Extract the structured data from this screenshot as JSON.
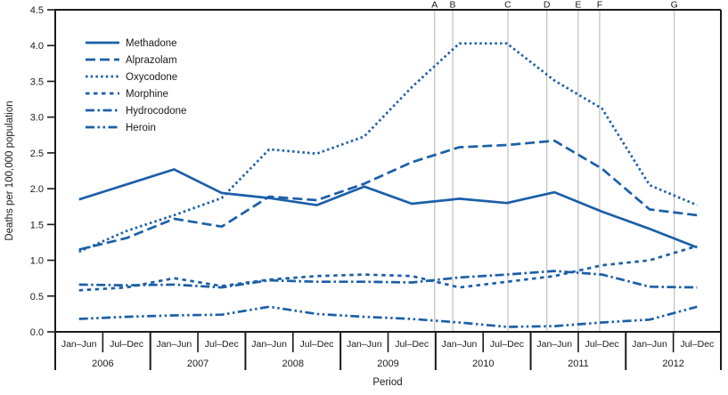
{
  "chart_data": {
    "type": "line",
    "title": "",
    "xlabel": "Period",
    "ylabel": "Deaths per 100,000 population",
    "ylim": [
      0,
      4.5
    ],
    "ytick_step": 0.5,
    "ytick_labels": [
      "0.0",
      "0.5",
      "1.0",
      "1.5",
      "2.0",
      "2.5",
      "3.0",
      "3.5",
      "4.0",
      "4.5"
    ],
    "grid": "off",
    "legend_position": "upper-left",
    "period_half_labels": [
      "Jan–Jun",
      "Jul–Dec"
    ],
    "year_labels": [
      "2006",
      "2007",
      "2008",
      "2009",
      "2010",
      "2011",
      "2012"
    ],
    "x_tick_labels": [
      "Jan–Jun",
      "Jul–Dec",
      "Jan–Jun",
      "Jul–Dec",
      "Jan–Jun",
      "Jul–Dec",
      "Jan–Jun",
      "Jul–Dec",
      "Jan–Jun",
      "Jul–Dec",
      "Jan–Jun",
      "Jul–Dec",
      "Jan–Jun",
      "Jul–Dec"
    ],
    "series": [
      {
        "name": "Methadone",
        "line_style": "solid",
        "values": [
          1.85,
          2.06,
          2.27,
          1.94,
          1.87,
          1.77,
          2.03,
          1.79,
          1.86,
          1.8,
          1.95,
          1.68,
          1.44,
          1.18
        ]
      },
      {
        "name": "Alprazolam",
        "line_style": "long-dash",
        "values": [
          1.15,
          1.31,
          1.58,
          1.47,
          1.89,
          1.84,
          2.07,
          2.37,
          2.58,
          2.61,
          2.67,
          2.28,
          1.71,
          1.63
        ]
      },
      {
        "name": "Oxycodone",
        "line_style": "dotted",
        "values": [
          1.12,
          1.41,
          1.63,
          1.87,
          2.55,
          2.49,
          2.73,
          3.42,
          4.03,
          4.03,
          3.51,
          3.12,
          2.05,
          1.77
        ]
      },
      {
        "name": "Morphine",
        "line_style": "short-dash",
        "values": [
          0.58,
          0.62,
          0.75,
          0.64,
          0.73,
          0.78,
          0.8,
          0.78,
          0.62,
          0.7,
          0.78,
          0.93,
          1.0,
          1.2
        ]
      },
      {
        "name": "Hydrocodone",
        "line_style": "dash-dot",
        "values": [
          0.66,
          0.65,
          0.66,
          0.62,
          0.72,
          0.7,
          0.7,
          0.69,
          0.76,
          0.8,
          0.85,
          0.8,
          0.63,
          0.62
        ]
      },
      {
        "name": "Heroin",
        "line_style": "dash-dot-dot",
        "values": [
          0.18,
          0.21,
          0.23,
          0.24,
          0.35,
          0.25,
          0.21,
          0.18,
          0.13,
          0.07,
          0.08,
          0.13,
          0.17,
          0.35
        ]
      }
    ],
    "event_markers": [
      {
        "label": "A",
        "x_index": 7.48
      },
      {
        "label": "B",
        "x_index": 7.86
      },
      {
        "label": "C",
        "x_index": 9.02
      },
      {
        "label": "D",
        "x_index": 9.84
      },
      {
        "label": "E",
        "x_index": 10.5
      },
      {
        "label": "F",
        "x_index": 10.95
      },
      {
        "label": "G",
        "x_index": 12.52
      }
    ],
    "colors": {
      "line": "#1b5fa8",
      "event_line": "#b3b3b3",
      "event_label": "#3a3a3a",
      "axis": "#1a1a1a"
    }
  }
}
